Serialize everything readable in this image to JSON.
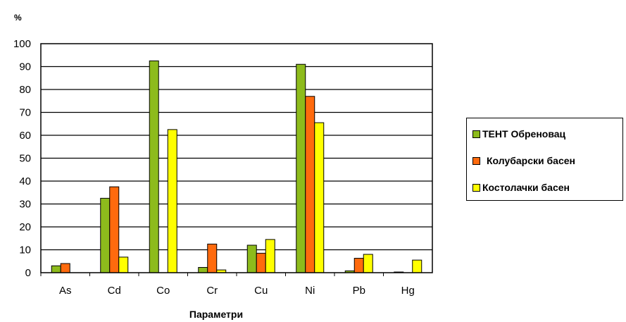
{
  "chart_data": {
    "type": "bar",
    "categories": [
      "As",
      "Cd",
      "Co",
      "Cr",
      "Cu",
      "Ni",
      "Pb",
      "Hg"
    ],
    "series": [
      {
        "name": "ТЕНТ Обреновац",
        "color": "#8dbb1c",
        "values": [
          3,
          32.5,
          92.5,
          2.3,
          12,
          91,
          0.8,
          0.3
        ]
      },
      {
        "name": "Колубарски басен",
        "color": "#ff6a0d",
        "values": [
          4,
          37.5,
          0,
          12.5,
          8.5,
          77,
          6.3,
          0
        ]
      },
      {
        "name": "Костолачки басен",
        "color": "#ffff00",
        "values": [
          0,
          6.8,
          62.5,
          1.2,
          14.5,
          65.5,
          8,
          5.5
        ]
      }
    ],
    "ylim": [
      0,
      100
    ],
    "yticks": [
      0,
      10,
      20,
      30,
      40,
      50,
      60,
      70,
      80,
      90,
      100
    ],
    "unit_label": "%",
    "xlabel": "Параметри",
    "grid": true,
    "legend_position": "right"
  }
}
